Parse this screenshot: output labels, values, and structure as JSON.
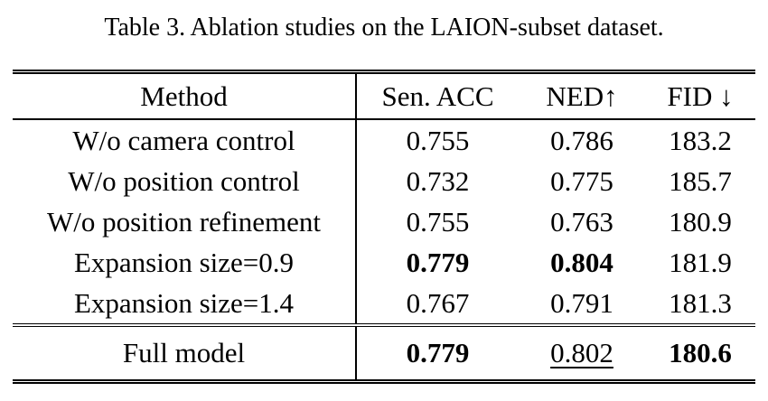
{
  "caption": "Table 3. Ablation studies on the LAION-subset dataset.",
  "table": {
    "headers": {
      "method": "Method",
      "sen_acc": "Sen. ACC",
      "ned": "NED↑",
      "fid": "FID ↓"
    },
    "rows": [
      {
        "method": "W/o camera control",
        "sen_acc": "0.755",
        "ned": "0.786",
        "fid": "183.2"
      },
      {
        "method": "W/o position control",
        "sen_acc": "0.732",
        "ned": "0.775",
        "fid": "185.7"
      },
      {
        "method": "W/o position refinement",
        "sen_acc": "0.755",
        "ned": "0.763",
        "fid": "180.9"
      },
      {
        "method": "Expansion size=0.9",
        "sen_acc": "0.779",
        "ned": "0.804",
        "fid": "181.9"
      },
      {
        "method": "Expansion size=1.4",
        "sen_acc": "0.767",
        "ned": "0.791",
        "fid": "181.3"
      }
    ],
    "footer": {
      "method": "Full model",
      "sen_acc": "0.779",
      "ned": "0.802",
      "fid": "180.6"
    }
  },
  "colors": {
    "text": "#000000",
    "background": "#ffffff"
  }
}
